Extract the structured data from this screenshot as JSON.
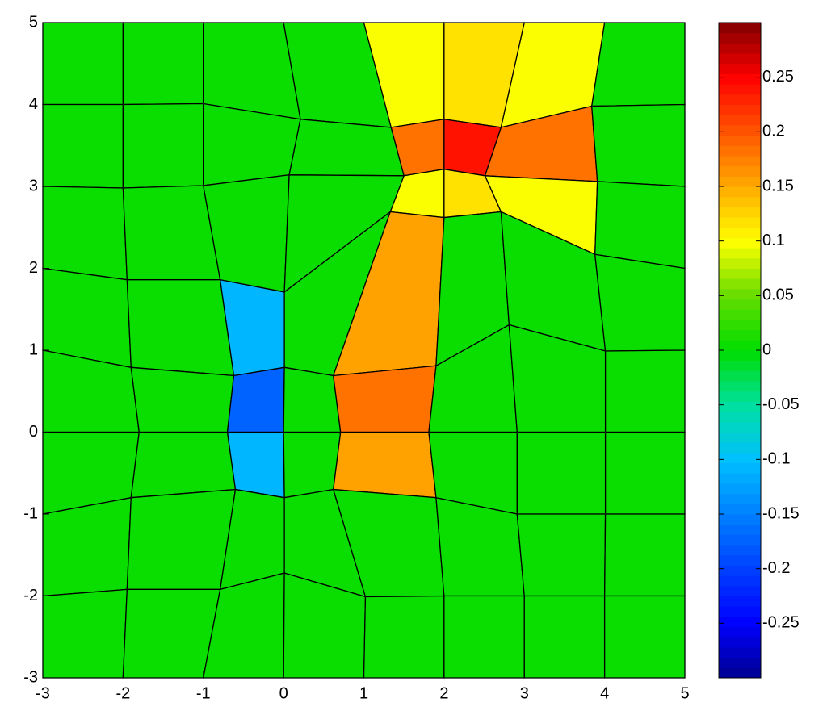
{
  "chart_data": {
    "type": "patch",
    "xlim": [
      -3,
      5
    ],
    "ylim": [
      -3,
      5
    ],
    "xticks": [
      -3,
      -2,
      -1,
      0,
      1,
      2,
      3,
      4,
      5
    ],
    "yticks": [
      -3,
      -2,
      -1,
      0,
      1,
      2,
      3,
      4,
      5
    ],
    "clim": [
      -0.3,
      0.3
    ],
    "cticks": [
      -0.25,
      -0.2,
      -0.15,
      -0.1,
      -0.05,
      0,
      0.05,
      0.1,
      0.15,
      0.2,
      0.25
    ],
    "colormap": [
      "#00008f",
      "#0000ff",
      "#0040ff",
      "#0080ff",
      "#00c0ff",
      "#00e0a0",
      "#00dd00",
      "#66dd00",
      "#ffff00",
      "#ffaa00",
      "#ff5500",
      "#ff0000",
      "#800000"
    ],
    "edge_color": "#000000",
    "x": [
      [
        -3,
        -2,
        -1,
        0,
        1,
        2,
        3,
        4,
        5
      ],
      [
        -3,
        -2,
        -1,
        0.21,
        1.34,
        2,
        2.71,
        3.84,
        5
      ],
      [
        -3,
        -2,
        -1,
        0.07,
        1.5,
        2,
        2.51,
        3.91,
        5
      ],
      [
        -3,
        -1.95,
        -0.79,
        0.01,
        1.33,
        2,
        2.71,
        3.88,
        5
      ],
      [
        -3,
        -1.9,
        -0.62,
        0.01,
        0.62,
        1.9,
        2.81,
        4.01,
        5
      ],
      [
        -3,
        -1.8,
        -0.7,
        0,
        0.71,
        1.81,
        2.91,
        4.01,
        5
      ],
      [
        -3,
        -1.9,
        -0.6,
        0.01,
        0.62,
        1.9,
        2.91,
        4.01,
        5
      ],
      [
        -3,
        -1.95,
        -0.79,
        0.01,
        1.02,
        2,
        3,
        4,
        5
      ],
      [
        -3,
        -2,
        -1,
        0,
        1,
        2,
        3,
        4,
        5
      ]
    ],
    "y": [
      [
        5,
        5,
        5,
        5,
        5,
        5,
        5,
        5,
        5
      ],
      [
        4,
        4,
        4.01,
        3.82,
        3.72,
        3.82,
        3.72,
        3.98,
        4
      ],
      [
        3,
        2.98,
        3.01,
        3.14,
        3.13,
        3.21,
        3.13,
        3.06,
        3
      ],
      [
        2,
        1.86,
        1.86,
        1.71,
        2.69,
        2.62,
        2.69,
        2.17,
        2
      ],
      [
        1,
        0.79,
        0.69,
        0.79,
        0.69,
        0.81,
        1.31,
        0.99,
        1
      ],
      [
        0,
        0,
        0,
        0,
        0,
        0,
        0,
        0,
        0
      ],
      [
        -1,
        -0.8,
        -0.7,
        -0.8,
        -0.7,
        -0.8,
        -1,
        -1,
        -1
      ],
      [
        -2,
        -1.92,
        -1.92,
        -1.72,
        -2.01,
        -2,
        -2,
        -2,
        -2
      ],
      [
        -3,
        -3,
        -3,
        -3,
        -3,
        -3,
        -3,
        -3,
        -3
      ]
    ],
    "values": [
      [
        0,
        0,
        0,
        0,
        0.1,
        0.12,
        0.1,
        0
      ],
      [
        0,
        0,
        0,
        0,
        0.18,
        0.24,
        0.18,
        0
      ],
      [
        0,
        0,
        0,
        0,
        0.1,
        0.12,
        0.1,
        0
      ],
      [
        0,
        0,
        -0.11,
        0,
        0.15,
        0,
        0,
        0
      ],
      [
        0,
        0,
        -0.17,
        0,
        0.18,
        0,
        0,
        0
      ],
      [
        0,
        0,
        -0.11,
        0,
        0.15,
        0,
        0,
        0
      ],
      [
        0,
        0,
        0,
        0,
        0,
        0,
        0,
        0
      ],
      [
        0,
        0,
        0,
        0,
        0,
        0,
        0,
        0
      ]
    ]
  }
}
